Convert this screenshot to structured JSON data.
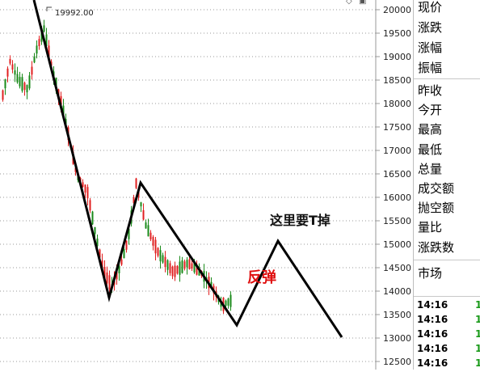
{
  "chart": {
    "y_axis_ticks": [
      "20000",
      "19500",
      "19000",
      "18500",
      "18000",
      "17500",
      "17000",
      "16500",
      "16000",
      "15500",
      "15000",
      "14500",
      "14000",
      "13500",
      "13000",
      "12500"
    ],
    "peak_label": "19992.00",
    "annotation_t": "这里要T掉",
    "annotation_rebound": "反弹",
    "up_color": "#e02020",
    "down_color": "#1a8a1a",
    "line_color": "#000000"
  },
  "side_panel": {
    "quote_labels": [
      "现价",
      "涨跌",
      "涨幅",
      "振幅"
    ],
    "stat_labels": [
      "昨收",
      "今开",
      "最高",
      "最低",
      "总量",
      "成交额",
      "抛空额",
      "量比",
      "涨跌数"
    ],
    "market_label": "市场",
    "ticks": [
      {
        "time": "14:16",
        "value": "1"
      },
      {
        "time": "14:16",
        "value": "1"
      },
      {
        "time": "14:16",
        "value": "1"
      },
      {
        "time": "14:16",
        "value": "1"
      },
      {
        "time": "14:16",
        "value": "1"
      }
    ]
  },
  "top_icons": [
    "diamond-icon",
    "window-icon"
  ]
}
